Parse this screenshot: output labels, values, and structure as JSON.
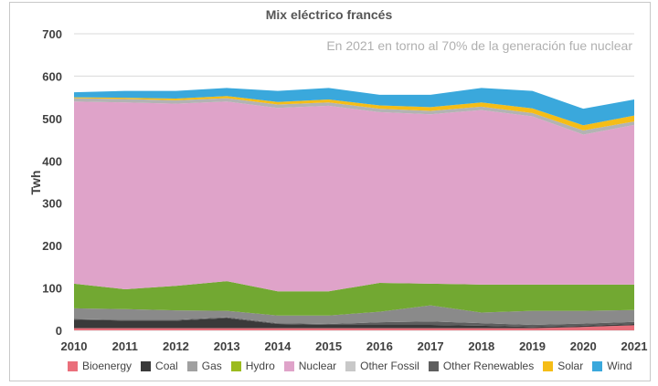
{
  "chart_data": {
    "type": "area",
    "stacked": true,
    "title": "Mix eléctrico francés",
    "annotation": "En 2021 en torno al 70% de la generación fue nuclear",
    "xlabel": "",
    "ylabel": "Twh",
    "ylim": [
      0,
      700
    ],
    "yticks": [
      0,
      100,
      200,
      300,
      400,
      500,
      600,
      700
    ],
    "x": [
      "2010",
      "2011",
      "2012",
      "2013",
      "2014",
      "2015",
      "2016",
      "2017",
      "2018",
      "2019",
      "2020",
      "2021"
    ],
    "grid": true,
    "legend_position": "bottom",
    "series": [
      {
        "name": "Bioenergy",
        "color": "#ea6f7b",
        "values": [
          5,
          5,
          5,
          5,
          5,
          5,
          5,
          5,
          5,
          5,
          8,
          12
        ]
      },
      {
        "name": "Coal",
        "color": "#3a3a3a",
        "values": [
          20,
          18,
          18,
          24,
          10,
          8,
          8,
          8,
          6,
          3,
          3,
          3
        ]
      },
      {
        "name": "Other Renewables",
        "color": "#5e5e5e",
        "values": [
          2,
          2,
          2,
          2,
          2,
          2,
          6,
          8,
          6,
          5,
          5,
          5
        ]
      },
      {
        "name": "Gas",
        "color": "#8a8a8a",
        "values": [
          25,
          25,
          22,
          15,
          18,
          20,
          25,
          38,
          25,
          33,
          30,
          28
        ]
      },
      {
        "name": "Hydro",
        "color": "#72a832",
        "values": [
          58,
          47,
          58,
          70,
          57,
          57,
          68,
          51,
          66,
          62,
          62,
          60
        ]
      },
      {
        "name": "Nuclear",
        "color": "#dfa3c9",
        "values": [
          430,
          441,
          430,
          424,
          433,
          438,
          403,
          400,
          412,
          397,
          354,
          377
        ]
      },
      {
        "name": "Other Fossil",
        "color": "#b3b3b3",
        "values": [
          8,
          8,
          8,
          8,
          8,
          8,
          8,
          8,
          8,
          8,
          10,
          8
        ]
      },
      {
        "name": "Solar",
        "color": "#f5bd17",
        "values": [
          2,
          3,
          4,
          5,
          6,
          7,
          8,
          9,
          10,
          11,
          12,
          14
        ]
      },
      {
        "name": "Wind",
        "color": "#3aa8dc",
        "values": [
          12,
          16,
          18,
          19,
          26,
          27,
          25,
          29,
          34,
          41,
          39,
          38
        ]
      }
    ],
    "legend_order": [
      {
        "name": "Bioenergy",
        "color": "#ea6f7b"
      },
      {
        "name": "Coal",
        "color": "#3a3a3a"
      },
      {
        "name": "Gas",
        "color": "#a0a0a0"
      },
      {
        "name": "Hydro",
        "color": "#9bbb1e"
      },
      {
        "name": "Nuclear",
        "color": "#dfa3c9"
      },
      {
        "name": "Other Fossil",
        "color": "#c8c8c8"
      },
      {
        "name": "Other Renewables",
        "color": "#5e5e5e"
      },
      {
        "name": "Solar",
        "color": "#f5bd17"
      },
      {
        "name": "Wind",
        "color": "#3aa8dc"
      }
    ]
  }
}
